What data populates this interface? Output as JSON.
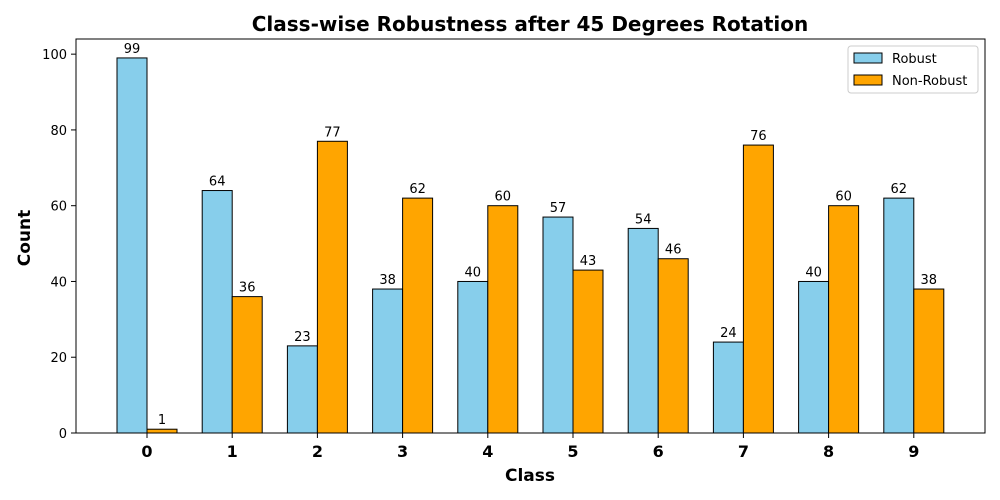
{
  "chart_data": {
    "type": "bar",
    "title": "Class-wise Robustness after 45 Degrees Rotation",
    "xlabel": "Class",
    "ylabel": "Count",
    "categories": [
      "0",
      "1",
      "2",
      "3",
      "4",
      "5",
      "6",
      "7",
      "8",
      "9"
    ],
    "series": [
      {
        "name": "Robust",
        "color": "#87ceeb",
        "values": [
          99,
          64,
          23,
          38,
          40,
          57,
          54,
          24,
          40,
          62
        ]
      },
      {
        "name": "Non-Robust",
        "color": "#ffa500",
        "values": [
          1,
          36,
          77,
          62,
          60,
          43,
          46,
          76,
          60,
          38
        ]
      }
    ],
    "ylim": [
      0,
      104
    ],
    "yticks": [
      0,
      20,
      40,
      60,
      80,
      100
    ],
    "grid": false,
    "legend_position": "top-right",
    "data_labels": true
  }
}
